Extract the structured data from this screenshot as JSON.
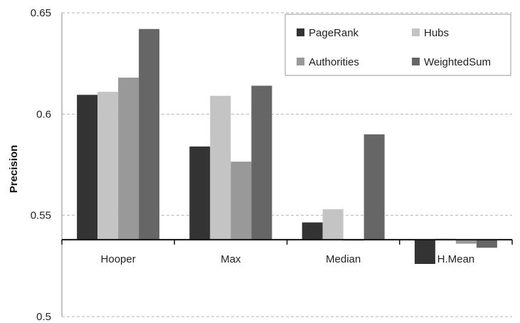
{
  "chart_data": {
    "type": "bar",
    "categories": [
      "Hooper",
      "Max",
      "Median",
      "H.Mean"
    ],
    "series": [
      {
        "name": "PageRank",
        "color": "#333333",
        "values": [
          0.6095,
          0.584,
          0.5465,
          0.526
        ]
      },
      {
        "name": "Hubs",
        "color": "#c4c4c4",
        "values": [
          0.611,
          0.609,
          0.553,
          0.5385
        ]
      },
      {
        "name": "Authorities",
        "color": "#999999",
        "values": [
          0.618,
          0.5765,
          0.5375,
          0.536
        ]
      },
      {
        "name": "WeightedSum",
        "color": "#666666",
        "values": [
          0.642,
          0.614,
          0.59,
          0.534
        ]
      }
    ],
    "ylabel": "Precision",
    "ylim": [
      0.5,
      0.65
    ],
    "yticks": [
      0.5,
      0.55,
      0.6,
      0.65
    ],
    "ytick_labels": [
      "0.5",
      "0.55",
      "0.6",
      "0.65"
    ],
    "baseline": 0.538,
    "grid": true,
    "grid_style": "dashed",
    "legend_position": "top-right",
    "legend_columns": 2
  }
}
